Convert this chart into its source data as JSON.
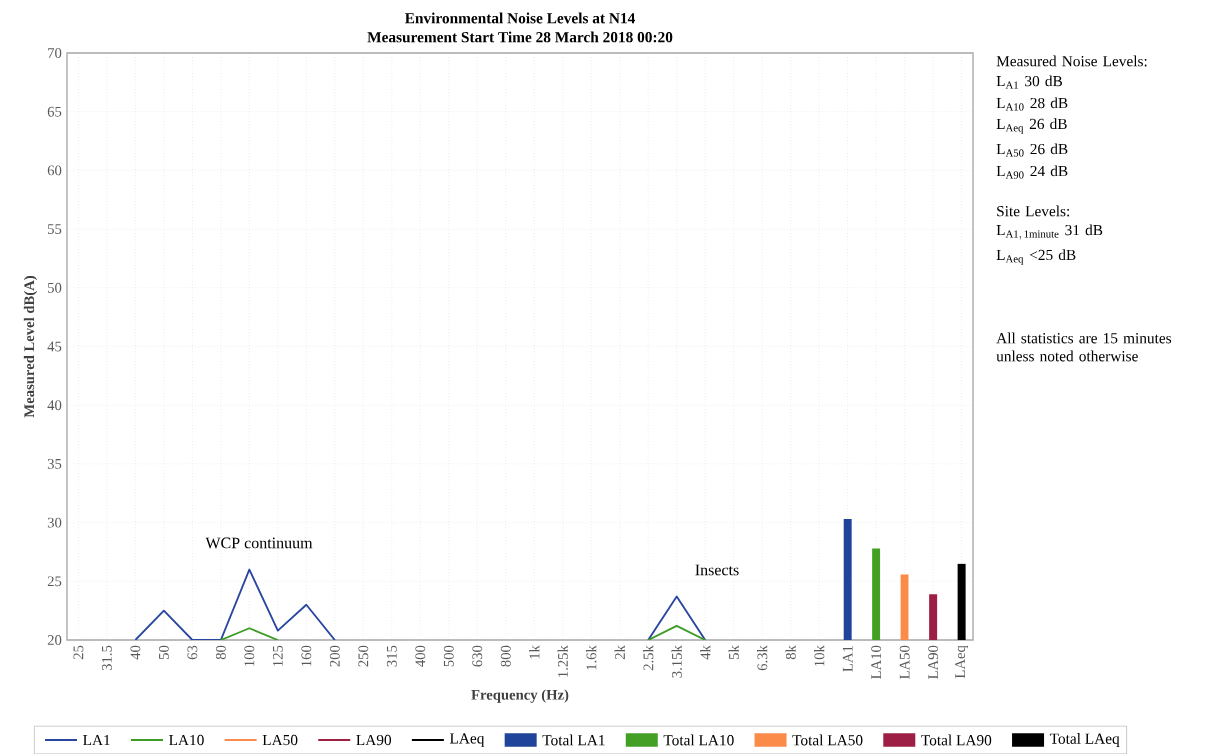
{
  "chart_data": {
    "type": "line",
    "title": "Environmental Noise Levels at N14",
    "subtitle": "Measurement Start Time 28 March 2018 00:20",
    "xlabel": "Frequency (Hz)",
    "ylabel": "Measured Level dB(A)",
    "categories": [
      "25",
      "31.5",
      "40",
      "50",
      "63",
      "80",
      "100",
      "125",
      "160",
      "200",
      "250",
      "315",
      "400",
      "500",
      "630",
      "800",
      "1k",
      "1.25k",
      "1.6k",
      "2k",
      "2.5k",
      "3.15k",
      "4k",
      "5k",
      "6.3k",
      "8k",
      "10k",
      "LA1",
      "LA10",
      "LA50",
      "LA90",
      "LAeq"
    ],
    "series": [
      {
        "name": "LA1",
        "color": "#2a47a0",
        "values": [
          null,
          null,
          20,
          22.5,
          20,
          20,
          26,
          20.8,
          23,
          20,
          null,
          null,
          null,
          null,
          null,
          null,
          null,
          null,
          null,
          null,
          20,
          23.7,
          20,
          null,
          null,
          null,
          null,
          null,
          null,
          null,
          null,
          null
        ]
      },
      {
        "name": "LA10",
        "color": "#3c9c25",
        "values": [
          null,
          null,
          null,
          null,
          null,
          20,
          21,
          20,
          null,
          null,
          null,
          null,
          null,
          null,
          null,
          null,
          null,
          null,
          null,
          null,
          20,
          21.2,
          20,
          null,
          null,
          null,
          null,
          null,
          null,
          null,
          null,
          null
        ]
      },
      {
        "name": "LA50",
        "color": "#f98c4a",
        "values": [
          null,
          null,
          null,
          null,
          null,
          null,
          null,
          null,
          null,
          null,
          null,
          null,
          null,
          null,
          null,
          null,
          null,
          null,
          null,
          null,
          null,
          null,
          null,
          null,
          null,
          null,
          null,
          null,
          null,
          null,
          null,
          null
        ]
      },
      {
        "name": "LA90",
        "color": "#9e2145",
        "values": [
          null,
          null,
          null,
          null,
          null,
          null,
          null,
          null,
          null,
          null,
          null,
          null,
          null,
          null,
          null,
          null,
          null,
          null,
          null,
          null,
          null,
          null,
          null,
          null,
          null,
          null,
          null,
          null,
          null,
          null,
          null,
          null
        ]
      },
      {
        "name": "LAeq",
        "color": "#000000",
        "values": [
          null,
          null,
          null,
          null,
          null,
          null,
          null,
          null,
          null,
          null,
          null,
          null,
          null,
          null,
          null,
          null,
          null,
          null,
          null,
          null,
          null,
          null,
          null,
          null,
          null,
          null,
          null,
          null,
          null,
          null,
          null,
          null
        ]
      },
      {
        "name": "Total LA1",
        "type": "bar",
        "color": "#21449b",
        "values": [
          null,
          null,
          null,
          null,
          null,
          null,
          null,
          null,
          null,
          null,
          null,
          null,
          null,
          null,
          null,
          null,
          null,
          null,
          null,
          null,
          null,
          null,
          null,
          null,
          null,
          null,
          null,
          30.3,
          null,
          null,
          null,
          null
        ]
      },
      {
        "name": "Total LA10",
        "type": "bar",
        "color": "#44a024",
        "values": [
          null,
          null,
          null,
          null,
          null,
          null,
          null,
          null,
          null,
          null,
          null,
          null,
          null,
          null,
          null,
          null,
          null,
          null,
          null,
          null,
          null,
          null,
          null,
          null,
          null,
          null,
          null,
          null,
          27.8,
          null,
          null,
          null
        ]
      },
      {
        "name": "Total LA50",
        "type": "bar",
        "color": "#fb8b48",
        "values": [
          null,
          null,
          null,
          null,
          null,
          null,
          null,
          null,
          null,
          null,
          null,
          null,
          null,
          null,
          null,
          null,
          null,
          null,
          null,
          null,
          null,
          null,
          null,
          null,
          null,
          null,
          null,
          null,
          null,
          25.6,
          null,
          null
        ]
      },
      {
        "name": "Total LA90",
        "type": "bar",
        "color": "#9e1f45",
        "values": [
          null,
          null,
          null,
          null,
          null,
          null,
          null,
          null,
          null,
          null,
          null,
          null,
          null,
          null,
          null,
          null,
          null,
          null,
          null,
          null,
          null,
          null,
          null,
          null,
          null,
          null,
          null,
          null,
          null,
          null,
          23.9,
          null
        ]
      },
      {
        "name": "Total LAeq",
        "type": "bar",
        "color": "#000000",
        "values": [
          null,
          null,
          null,
          null,
          null,
          null,
          null,
          null,
          null,
          null,
          null,
          null,
          null,
          null,
          null,
          null,
          null,
          null,
          null,
          null,
          null,
          null,
          null,
          null,
          null,
          null,
          null,
          null,
          null,
          null,
          null,
          26.5
        ]
      }
    ],
    "ylim": [
      20,
      70
    ],
    "yticks": [
      20,
      25,
      30,
      35,
      40,
      45,
      50,
      55,
      60,
      65,
      70
    ],
    "grid": true,
    "legend": "bottom",
    "annotations": [
      "WCP continuum",
      "Insects",
      "Measured Noise Levels:",
      "L$_{A1}$ 30 dB",
      "L$_{A10}$ 28 dB",
      "L$_{Aeq}$ 26 dB",
      "L$_{A50}$ 26 dB",
      "L$_{A90}$ 24 dB",
      "Site Levels:",
      "\\mathrm{L_{A1,\\,1minute}\\ 31\\ dB}",
      "L$_{Aeq}$ <25 dB",
      "All statistics are 15 minutes unless noted otherwise"
    ]
  }
}
